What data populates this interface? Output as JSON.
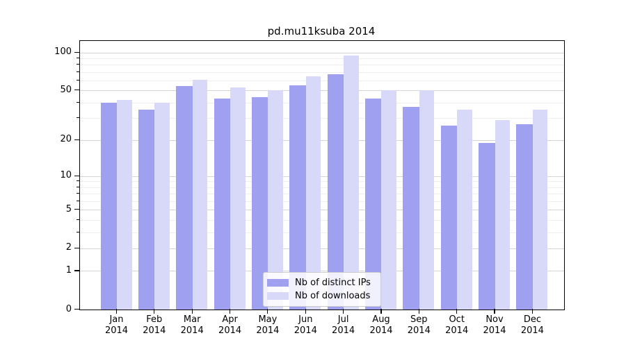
{
  "title": "pd.mu11ksuba 2014",
  "colors": {
    "ips_bar": "#a0a0f0",
    "downloads_bar": "#d8d8f8",
    "grid_major": "#d4d4d4",
    "grid_minor": "#efefef",
    "axis": "#000000"
  },
  "legend": {
    "items": [
      {
        "label": "Nb of distinct IPs"
      },
      {
        "label": "Nb of downloads"
      }
    ]
  },
  "chart_data": {
    "type": "bar",
    "title": "pd.mu11ksuba 2014",
    "categories": [
      "Jan",
      "Feb",
      "Mar",
      "Apr",
      "May",
      "Jun",
      "Jul",
      "Aug",
      "Sep",
      "Oct",
      "Nov",
      "Dec"
    ],
    "year": "2014",
    "xtick_labels": [
      "Jan\n2014",
      "Feb\n2014",
      "Mar\n2014",
      "Apr\n2014",
      "May\n2014",
      "Jun\n2014",
      "Jul\n2014",
      "Aug\n2014",
      "Sep\n2014",
      "Oct\n2014",
      "Nov\n2014",
      "Dec\n2014"
    ],
    "series": [
      {
        "name": "Nb of distinct IPs",
        "color": "#a0a0f0",
        "values": [
          40,
          35,
          54,
          43,
          44,
          55,
          67,
          43,
          37,
          26,
          19,
          27
        ]
      },
      {
        "name": "Nb of downloads",
        "color": "#d8d8f8",
        "values": [
          42,
          40,
          61,
          53,
          50,
          65,
          95,
          50,
          50,
          35,
          29,
          35
        ]
      }
    ],
    "xlabel": "",
    "ylabel": "",
    "yscale": "log1p",
    "ylim": [
      0,
      123
    ],
    "yticks": [
      0,
      1,
      2,
      5,
      10,
      20,
      50,
      100
    ],
    "yticks_minor": [
      3,
      4,
      6,
      7,
      8,
      9,
      30,
      40,
      60,
      70,
      80,
      90
    ],
    "grid": true,
    "legend_position": "lower-center"
  }
}
